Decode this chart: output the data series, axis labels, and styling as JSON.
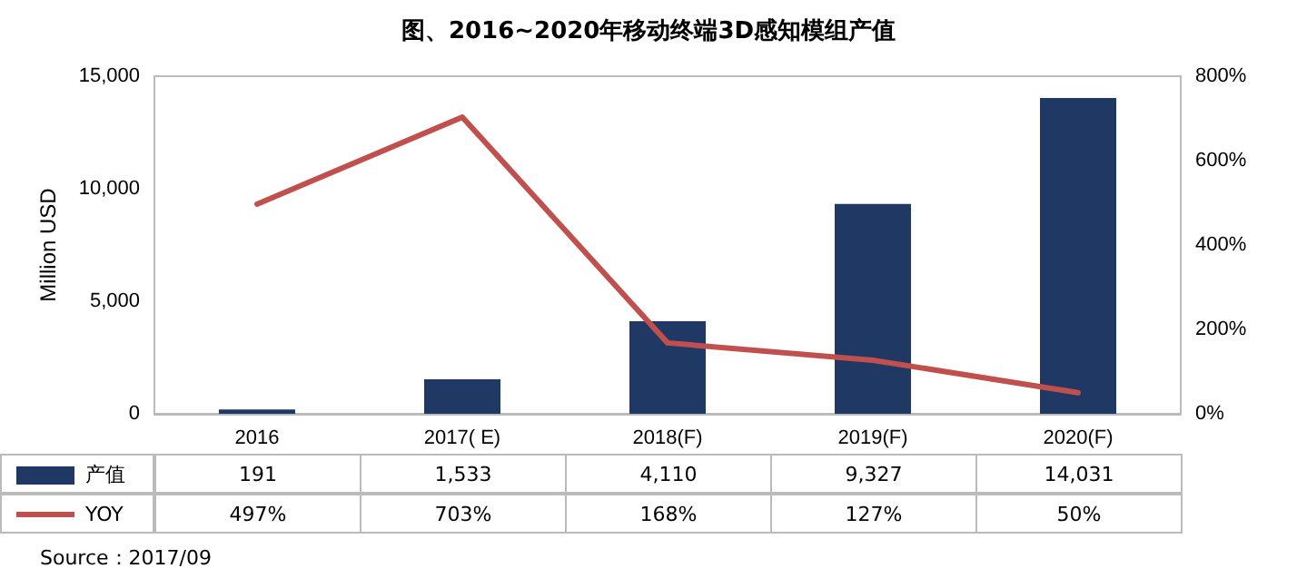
{
  "chart_data": {
    "type": "bar",
    "title": "图、2016~2020年移动终端3D感知模组产值",
    "ylabel": "Million USD",
    "categories": [
      "2016",
      "2017( E)",
      "2018(F)",
      "2019(F)",
      "2020(F)"
    ],
    "series": [
      {
        "name": "产值",
        "color": "#1f3864",
        "values": [
          191,
          1533,
          4110,
          9327,
          14031
        ],
        "value_labels": [
          "191",
          "1,533",
          "4,110",
          "9,327",
          "14,031"
        ]
      },
      {
        "name": "YOY",
        "type": "line",
        "axis": "y2",
        "color": "#c0504d",
        "values": [
          497,
          703,
          168,
          127,
          50
        ],
        "value_labels": [
          "497%",
          "703%",
          "168%",
          "127%",
          "50%"
        ]
      }
    ],
    "ylim": [
      0,
      15000
    ],
    "yticks": [
      {
        "value": 0,
        "label": "0"
      },
      {
        "value": 5000,
        "label": "5,000"
      },
      {
        "value": 10000,
        "label": "10,000"
      },
      {
        "value": 15000,
        "label": "15,000"
      }
    ],
    "y2lim": [
      0,
      800
    ],
    "y2ticks": [
      {
        "value": 0,
        "label": "0%"
      },
      {
        "value": 200,
        "label": "200%"
      },
      {
        "value": 400,
        "label": "400%"
      },
      {
        "value": 600,
        "label": "600%"
      },
      {
        "value": 800,
        "label": "800%"
      }
    ],
    "legend": "bottom",
    "marker": "none",
    "grid": false,
    "annotations": [
      "Source：2017/09"
    ]
  }
}
